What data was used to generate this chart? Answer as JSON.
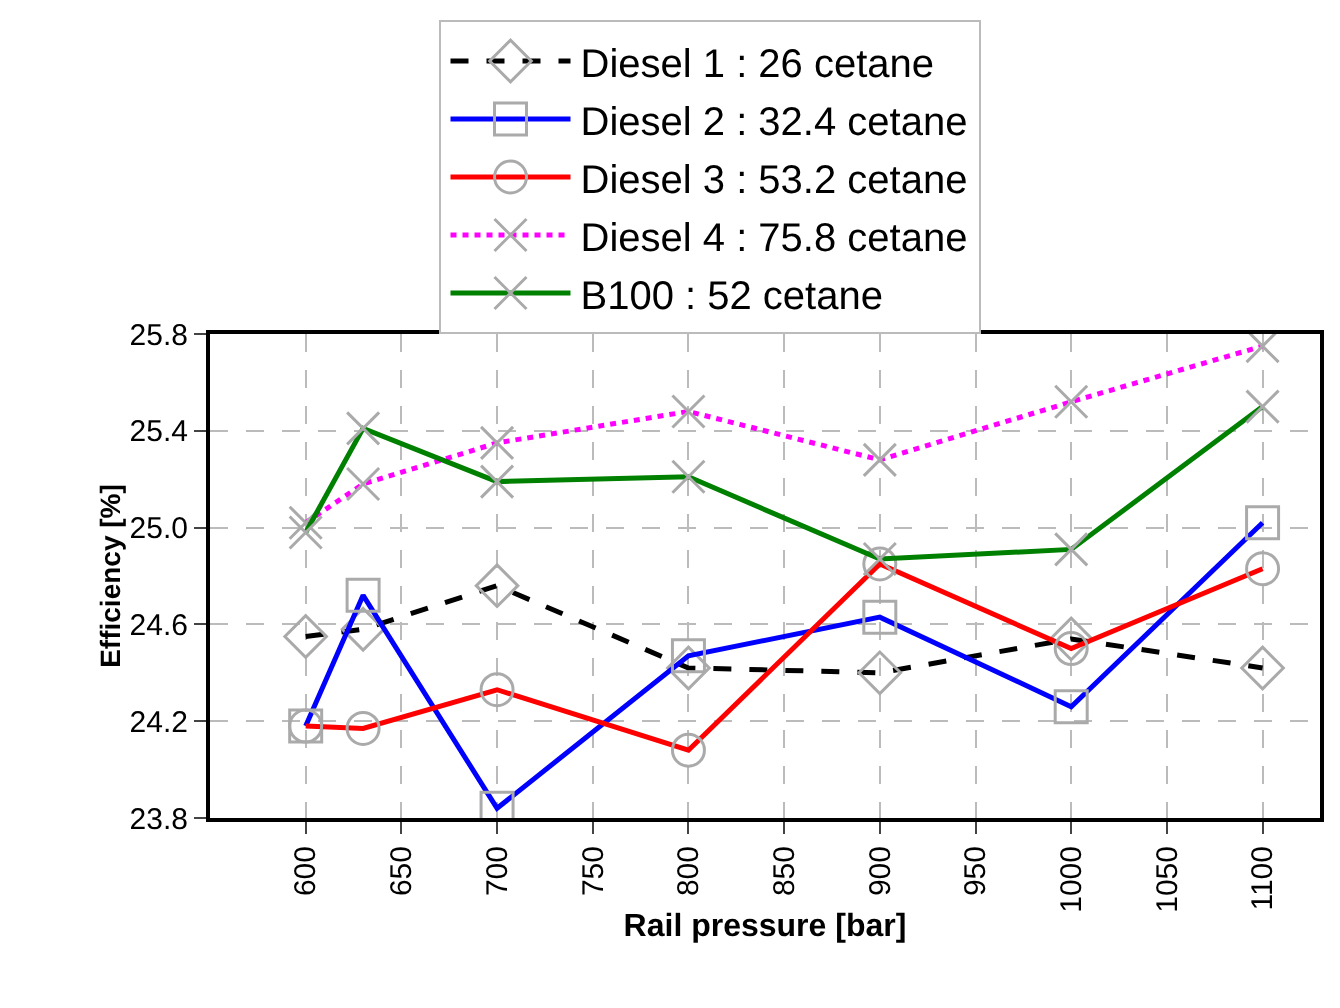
{
  "chart_data": {
    "type": "line",
    "xlabel": "Rail pressure [bar]",
    "ylabel": "Efficiency [%]",
    "x": [
      600,
      630,
      700,
      800,
      900,
      1000,
      1100
    ],
    "series": [
      {
        "name": "Diesel 1 : 26 cetane",
        "color": "#000000",
        "marker": "diamond",
        "line_style": "dashed",
        "values": [
          24.55,
          24.58,
          24.76,
          24.42,
          24.4,
          24.54,
          24.42
        ]
      },
      {
        "name": "Diesel 2 : 32.4 cetane",
        "color": "#0000ff",
        "marker": "square",
        "line_style": "solid",
        "values": [
          24.18,
          24.72,
          23.84,
          24.47,
          24.63,
          24.26,
          25.02
        ]
      },
      {
        "name": "Diesel 3 : 53.2 cetane",
        "color": "#ff0000",
        "marker": "circle",
        "line_style": "solid",
        "values": [
          24.18,
          24.17,
          24.33,
          24.08,
          24.85,
          24.5,
          24.83
        ]
      },
      {
        "name": "Diesel 4 : 75.8 cetane",
        "color": "#ff00ff",
        "marker": "cross",
        "line_style": "dotted",
        "values": [
          25.02,
          25.18,
          25.35,
          25.48,
          25.28,
          25.52,
          25.75
        ]
      },
      {
        "name": "B100 : 52 cetane",
        "color": "#008000",
        "marker": "cross",
        "line_style": "solid",
        "values": [
          24.98,
          25.41,
          25.19,
          25.21,
          24.87,
          24.91,
          25.5
        ]
      }
    ],
    "xlim": [
      550,
      1130
    ],
    "xticks": [
      600,
      650,
      700,
      750,
      800,
      850,
      900,
      950,
      1000,
      1050,
      1100
    ],
    "ylim": [
      23.8,
      25.8
    ],
    "yticks": [
      23.8,
      24.2,
      24.6,
      {
        "value": 25,
        "label": "25.0"
      },
      25.4,
      25.8
    ],
    "grid": true,
    "legend": "top"
  }
}
